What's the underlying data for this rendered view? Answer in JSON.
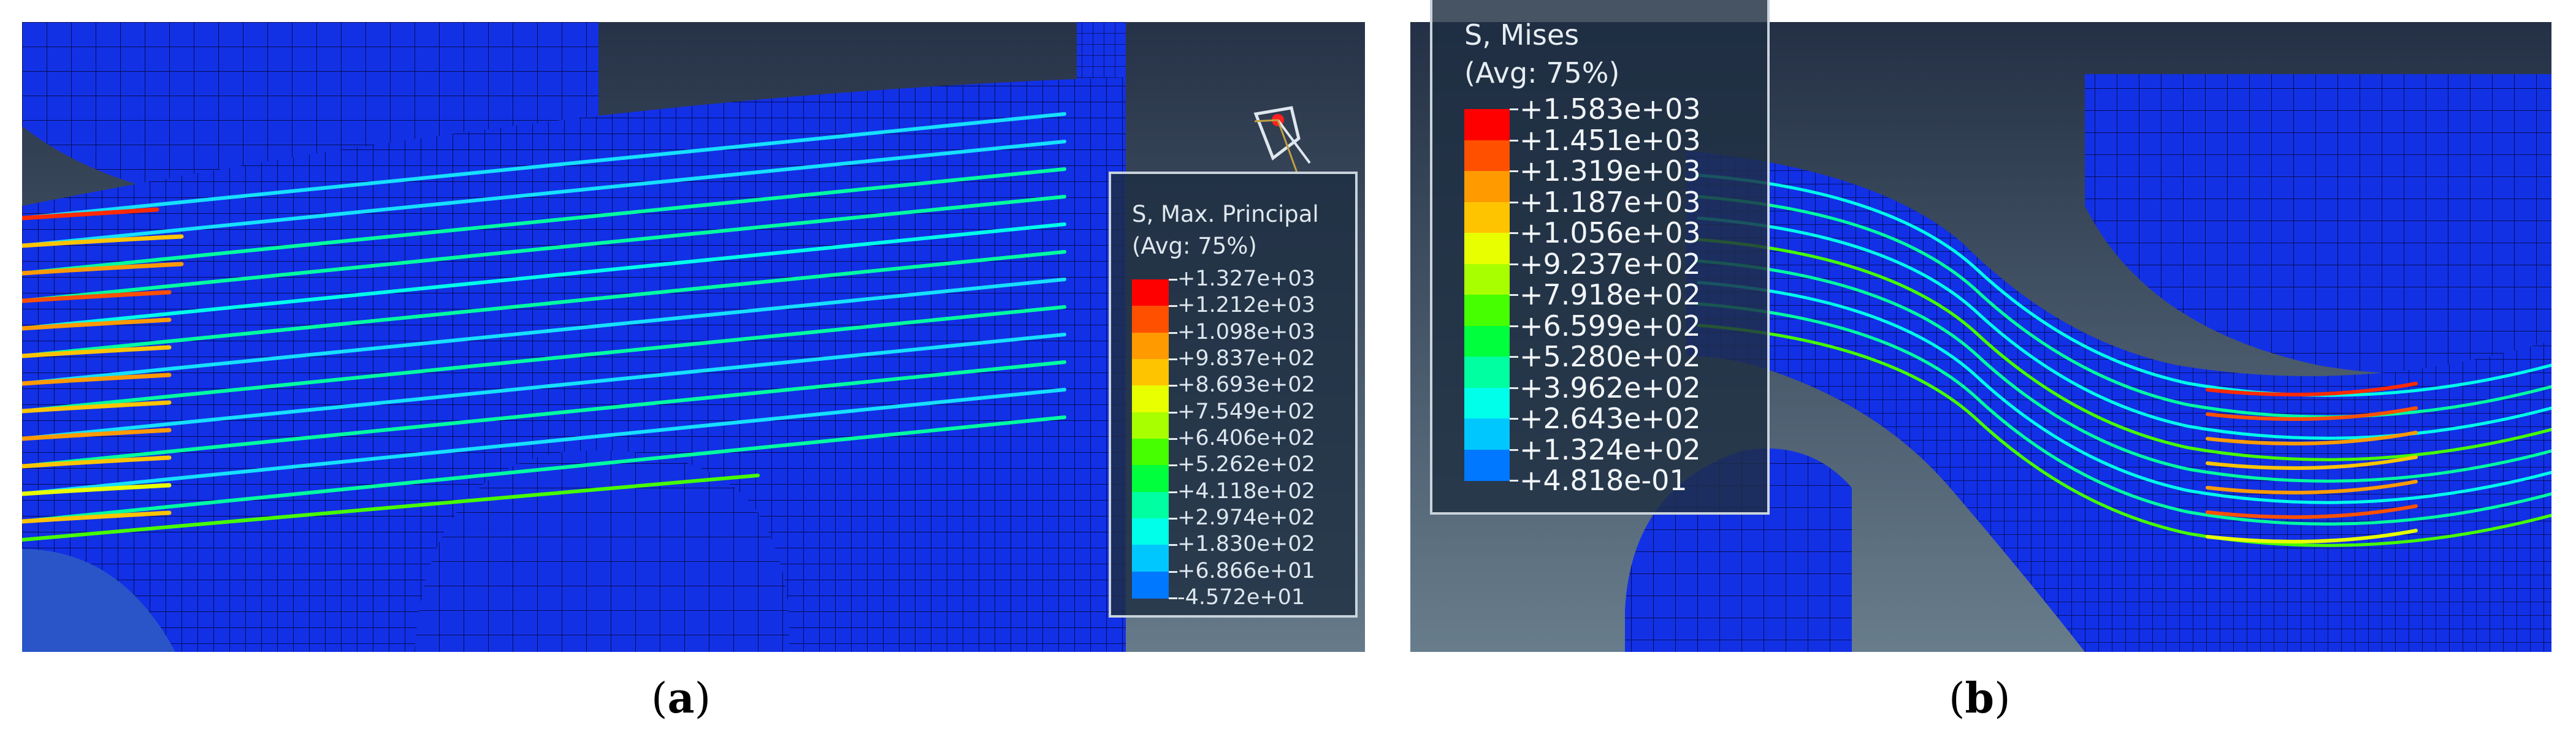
{
  "panels": [
    {
      "id": "a",
      "caption": "a",
      "legend": {
        "title_line1": "S, Max. Principal",
        "title_line2": "(Avg: 75%)",
        "values": [
          "+1.327e+03",
          "+1.212e+03",
          "+1.098e+03",
          "+9.837e+02",
          "+8.693e+02",
          "+7.549e+02",
          "+6.406e+02",
          "+5.262e+02",
          "+4.118e+02",
          "+2.974e+02",
          "+1.830e+02",
          "+6.866e+01",
          "-4.572e+01"
        ],
        "colors": [
          "#ff0000",
          "#ff5000",
          "#ff9a00",
          "#ffc400",
          "#e8ff00",
          "#a8ff00",
          "#46ff00",
          "#00ff3c",
          "#00ffa0",
          "#00ffea",
          "#00c8ff",
          "#0078ff",
          "#0020ff"
        ]
      }
    },
    {
      "id": "b",
      "caption": "b",
      "legend": {
        "title_line1": "S, Mises",
        "title_line2": "(Avg: 75%)",
        "values": [
          "+1.583e+03",
          "+1.451e+03",
          "+1.319e+03",
          "+1.187e+03",
          "+1.056e+03",
          "+9.237e+02",
          "+7.918e+02",
          "+6.599e+02",
          "+5.280e+02",
          "+3.962e+02",
          "+2.643e+02",
          "+1.324e+02",
          "+4.818e-01"
        ],
        "colors": [
          "#ff0000",
          "#ff5000",
          "#ff9a00",
          "#ffc400",
          "#e8ff00",
          "#a8ff00",
          "#46ff00",
          "#00ff3c",
          "#00ffa0",
          "#00ffea",
          "#00c8ff",
          "#0078ff",
          "#0020ff"
        ]
      }
    }
  ],
  "colors": {
    "mesh_blue": "#1030e0",
    "background_top": "#2a3a52",
    "background_bottom": "#5d6f80",
    "mesh_line": "#061060"
  }
}
